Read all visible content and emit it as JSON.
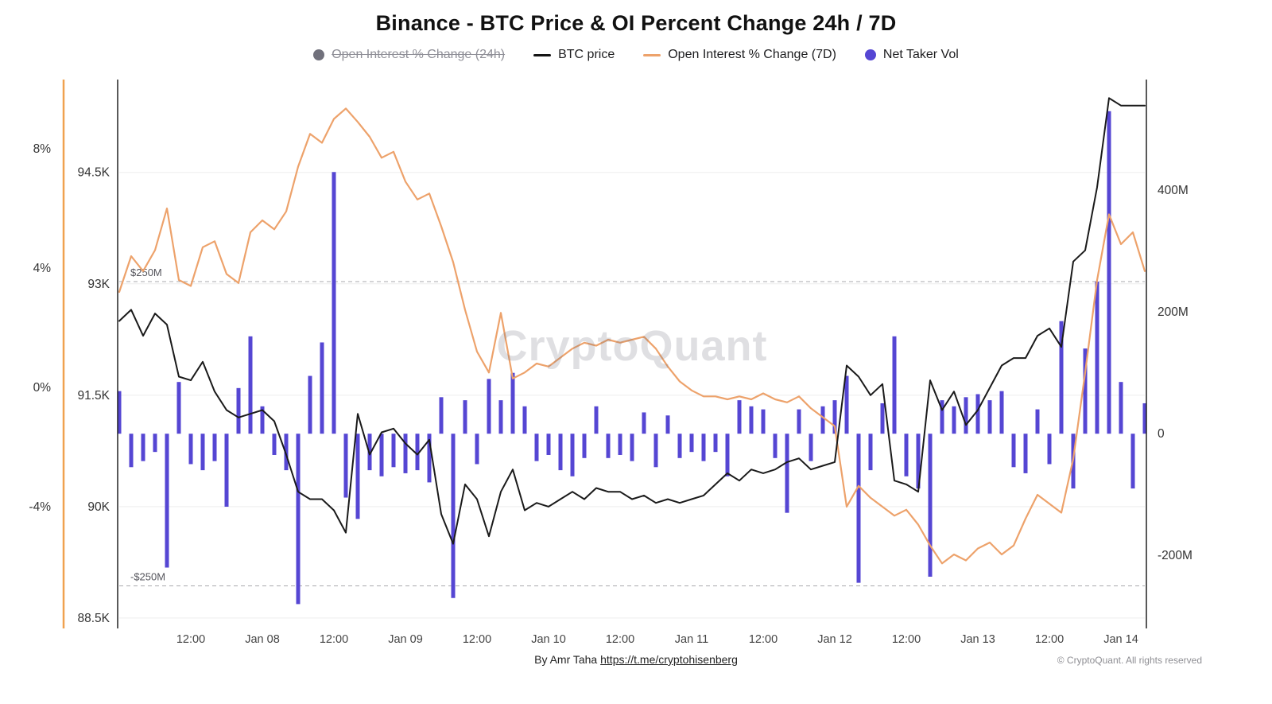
{
  "title": "Binance - BTC Price & OI Percent Change 24h / 7D",
  "watermark": "CryptoQuant",
  "legend": [
    {
      "id": "oi-24h",
      "label": "Open Interest % Change (24h)",
      "marker": "circle",
      "color": "#71717c",
      "disabled": true
    },
    {
      "id": "btc-price",
      "label": "BTC price",
      "marker": "line",
      "color": "#141414",
      "disabled": false
    },
    {
      "id": "oi-7d",
      "label": "Open Interest % Change (7D)",
      "marker": "line",
      "color": "#eda26b",
      "disabled": false
    },
    {
      "id": "net-taker-vol",
      "label": "Net Taker Vol",
      "marker": "circle",
      "color": "#5546d3",
      "disabled": false
    }
  ],
  "footer": {
    "byline": "By Amr Taha ",
    "link": "https://t.me/cryptohisenberg",
    "copyright": "© CryptoQuant. All rights reserved"
  },
  "chart_data": {
    "type": "mixed",
    "title": "Binance - BTC Price & OI Percent Change 24h / 7D",
    "n_points": 87,
    "x_start": "Jan 07 00:00",
    "x_step_hours": 2,
    "x_tick_labels": [
      "12:00",
      "Jan 08",
      "12:00",
      "Jan 09",
      "12:00",
      "Jan 10",
      "12:00",
      "Jan 11",
      "12:00",
      "Jan 12",
      "12:00",
      "Jan 13",
      "12:00",
      "Jan 14"
    ],
    "x_tick_indices": [
      6,
      12,
      18,
      24,
      30,
      36,
      42,
      48,
      54,
      60,
      66,
      72,
      78,
      84
    ],
    "axes": {
      "percent": {
        "side": "outer-left",
        "axis_color": "#f0a14f",
        "ticks": [
          8,
          4,
          0,
          -4
        ],
        "tick_labels": [
          "8%",
          "4%",
          "0%",
          "-4%"
        ],
        "min": -8.08,
        "max": 10.32
      },
      "price": {
        "side": "left",
        "axis_color": "#222222",
        "ticks": [
          94.5,
          93,
          91.5,
          90,
          88.5
        ],
        "tick_labels": [
          "94.5K",
          "93K",
          "91.5K",
          "90K",
          "88.5K"
        ],
        "min": 88.36,
        "max": 95.75
      },
      "volume": {
        "side": "right",
        "axis_color": "#222222",
        "ticks": [
          400,
          200,
          0,
          -200
        ],
        "tick_labels": [
          "400M",
          "200M",
          "0",
          "-200M"
        ],
        "min": -320,
        "max": 582
      }
    },
    "reference_lines": [
      {
        "axis": "volume",
        "value": 250,
        "label": "$250M"
      },
      {
        "axis": "volume",
        "value": -250,
        "label": "-$250M"
      }
    ],
    "series": [
      {
        "name": "BTC price",
        "type": "line",
        "axis": "price",
        "color": "#1a1a1a",
        "values": [
          92.5,
          92.65,
          92.3,
          92.6,
          92.45,
          91.75,
          91.7,
          91.95,
          91.55,
          91.3,
          91.2,
          91.25,
          91.3,
          91.15,
          90.7,
          90.2,
          90.1,
          90.1,
          89.95,
          89.65,
          91.25,
          90.7,
          91.0,
          91.05,
          90.85,
          90.7,
          90.9,
          89.9,
          89.5,
          90.3,
          90.1,
          89.6,
          90.2,
          90.5,
          89.95,
          90.05,
          90.0,
          90.1,
          90.2,
          90.1,
          90.25,
          90.2,
          90.2,
          90.1,
          90.15,
          90.05,
          90.1,
          90.05,
          90.1,
          90.15,
          90.3,
          90.45,
          90.35,
          90.5,
          90.45,
          90.5,
          90.6,
          90.65,
          90.5,
          90.55,
          90.6,
          91.9,
          91.75,
          91.5,
          91.65,
          90.35,
          90.3,
          90.2,
          91.7,
          91.3,
          91.55,
          91.1,
          91.3,
          91.6,
          91.9,
          92.0,
          92.0,
          92.3,
          92.4,
          92.15,
          93.3,
          93.45,
          94.3,
          95.5,
          95.4,
          95.4,
          95.4
        ]
      },
      {
        "name": "Open Interest % Change (7D)",
        "type": "line",
        "axis": "percent",
        "color": "#eda26b",
        "values": [
          3.2,
          4.4,
          3.9,
          4.6,
          6.0,
          3.6,
          3.4,
          4.7,
          4.9,
          3.8,
          3.5,
          5.2,
          5.6,
          5.3,
          5.9,
          7.4,
          8.5,
          8.2,
          9.0,
          9.35,
          8.9,
          8.4,
          7.7,
          7.9,
          6.9,
          6.3,
          6.5,
          5.4,
          4.2,
          2.6,
          1.2,
          0.5,
          2.5,
          0.3,
          0.5,
          0.8,
          0.7,
          1.0,
          1.3,
          1.5,
          1.4,
          1.6,
          1.5,
          1.6,
          1.7,
          1.3,
          0.7,
          0.2,
          -0.1,
          -0.3,
          -0.3,
          -0.4,
          -0.3,
          -0.4,
          -0.2,
          -0.4,
          -0.5,
          -0.3,
          -0.7,
          -1.0,
          -1.3,
          -4.0,
          -3.3,
          -3.7,
          -4.0,
          -4.3,
          -4.1,
          -4.6,
          -5.3,
          -5.9,
          -5.6,
          -5.8,
          -5.4,
          -5.2,
          -5.6,
          -5.3,
          -4.4,
          -3.6,
          -3.9,
          -4.2,
          -2.4,
          0.5,
          3.6,
          5.8,
          4.8,
          5.2,
          3.9
        ]
      },
      {
        "name": "Net Taker Vol",
        "type": "bar",
        "axis": "volume",
        "color": "#5546d3",
        "values": [
          70,
          -55,
          -45,
          -30,
          -220,
          85,
          -50,
          -60,
          -45,
          -120,
          75,
          160,
          45,
          -35,
          -60,
          -280,
          95,
          150,
          430,
          -105,
          -140,
          -60,
          -70,
          -55,
          -65,
          -60,
          -80,
          60,
          -270,
          55,
          -50,
          90,
          55,
          100,
          45,
          -45,
          -35,
          -60,
          -70,
          -40,
          45,
          -40,
          -35,
          -45,
          35,
          -55,
          30,
          -40,
          -30,
          -45,
          -30,
          -70,
          55,
          45,
          40,
          -40,
          -130,
          40,
          -45,
          45,
          55,
          95,
          -245,
          -60,
          50,
          160,
          -70,
          -90,
          -235,
          55,
          45,
          60,
          65,
          55,
          70,
          -55,
          -65,
          40,
          -50,
          185,
          -90,
          140,
          250,
          530,
          85,
          -90,
          50
        ]
      }
    ]
  }
}
